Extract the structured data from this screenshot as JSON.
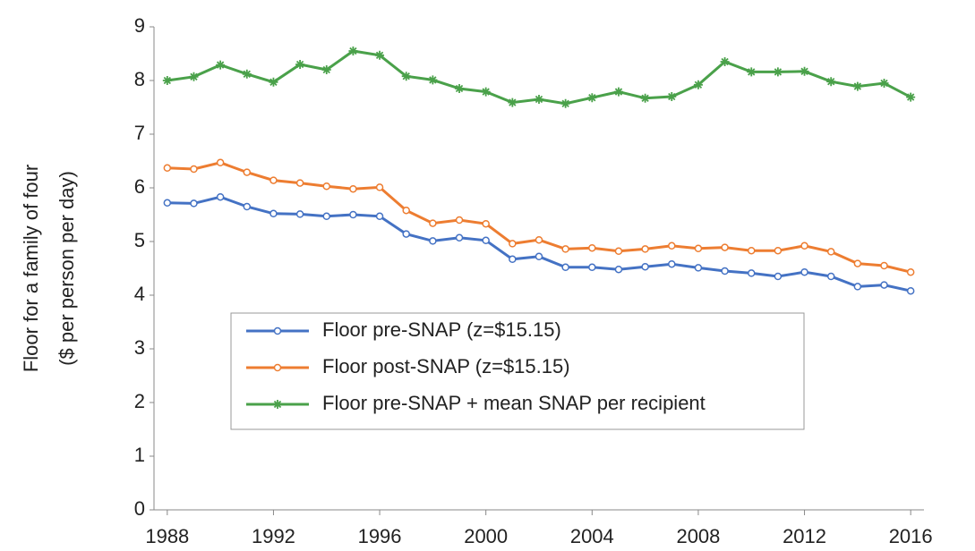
{
  "chart_data": {
    "type": "line",
    "ylabel": [
      "Floor for a family of four",
      "($ per person per day)"
    ],
    "x": [
      1988,
      1989,
      1990,
      1991,
      1992,
      1993,
      1994,
      1995,
      1996,
      1997,
      1998,
      1999,
      2000,
      2001,
      2002,
      2003,
      2004,
      2005,
      2006,
      2007,
      2008,
      2009,
      2010,
      2011,
      2012,
      2013,
      2014,
      2015,
      2016
    ],
    "series": [
      {
        "name": "Floor pre-SNAP (z=$15.15)",
        "color": "#4472c4",
        "marker": "circle",
        "values": [
          5.72,
          5.71,
          5.83,
          5.65,
          5.52,
          5.51,
          5.47,
          5.5,
          5.47,
          5.14,
          5.01,
          5.07,
          5.02,
          4.67,
          4.72,
          4.52,
          4.52,
          4.48,
          4.53,
          4.58,
          4.51,
          4.45,
          4.41,
          4.35,
          4.43,
          4.35,
          4.16,
          4.19,
          4.08
        ]
      },
      {
        "name": "Floor post-SNAP (z=$15.15)",
        "color": "#ed7d31",
        "marker": "circle",
        "values": [
          6.37,
          6.35,
          6.47,
          6.29,
          6.14,
          6.09,
          6.03,
          5.98,
          6.01,
          5.58,
          5.34,
          5.4,
          5.33,
          4.96,
          5.03,
          4.86,
          4.88,
          4.82,
          4.86,
          4.92,
          4.87,
          4.89,
          4.83,
          4.83,
          4.92,
          4.81,
          4.59,
          4.55,
          4.43
        ]
      },
      {
        "name": "Floor pre-SNAP + mean SNAP per recipient",
        "color": "#4aa14a",
        "marker": "star",
        "values": [
          8.0,
          8.07,
          8.29,
          8.12,
          7.97,
          8.3,
          8.2,
          8.55,
          8.47,
          8.08,
          8.01,
          7.85,
          7.79,
          7.59,
          7.65,
          7.57,
          7.68,
          7.79,
          7.67,
          7.7,
          7.92,
          8.35,
          8.16,
          8.16,
          8.17,
          7.98,
          7.89,
          7.95,
          7.69
        ]
      }
    ],
    "xlim": [
      1987.5,
      2016.5
    ],
    "xticks": [
      1988,
      1992,
      1996,
      2000,
      2004,
      2008,
      2012,
      2016
    ],
    "ylim": [
      0,
      9
    ],
    "yticks": [
      0,
      1,
      2,
      3,
      4,
      5,
      6,
      7,
      8,
      9
    ],
    "grid": false,
    "legend": "lower left"
  }
}
